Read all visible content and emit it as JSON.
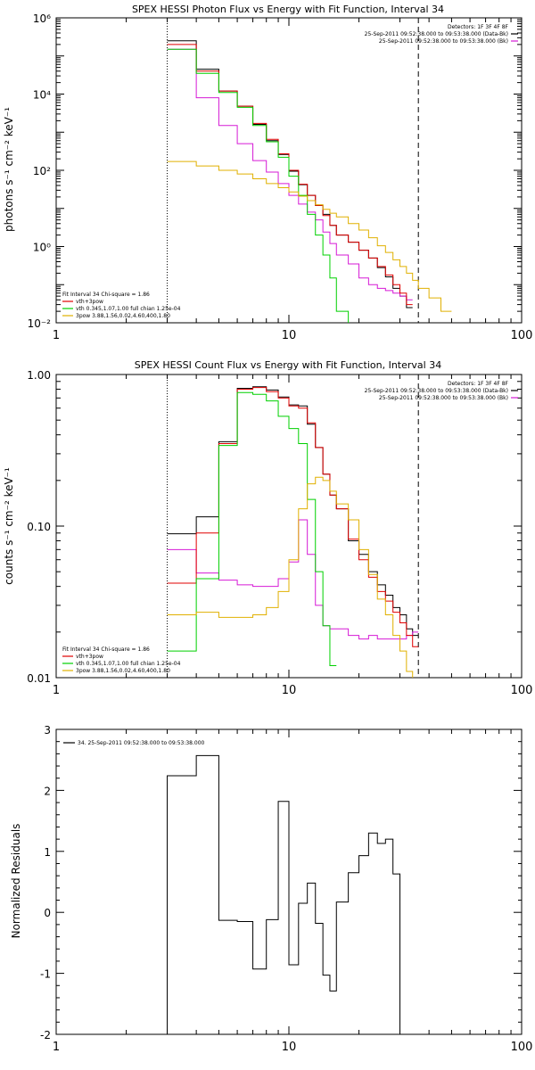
{
  "chart_data": [
    {
      "type": "line",
      "title": "SPEX HESSI Photon Flux vs Energy with Fit Function, Interval 34",
      "xlabel": "",
      "ylabel": "photons s⁻¹ cm⁻² keV⁻¹",
      "xscale": "log",
      "yscale": "log",
      "xlim": [
        1,
        100
      ],
      "ylim": [
        0.01,
        1000000
      ],
      "x_ticks": [
        {
          "v": 1,
          "label": "1"
        },
        {
          "v": 10,
          "label": "10"
        },
        {
          "v": 100,
          "label": "100"
        }
      ],
      "y_ticks": [
        {
          "v": 0.01,
          "label": "10⁻²"
        },
        {
          "v": 1,
          "label": "10⁰"
        },
        {
          "v": 100,
          "label": "10²"
        },
        {
          "v": 10000,
          "label": "10⁴"
        },
        {
          "v": 1000000,
          "label": "10⁶"
        }
      ],
      "vlines": [
        {
          "x": 3.0,
          "style": "dotted"
        },
        {
          "x": 36,
          "style": "dashed"
        }
      ],
      "legend_topright": [
        {
          "text": "Detectors: 1F 3F 4F 8F",
          "color": ""
        },
        {
          "text": "25-Sep-2011 09:52:38.000 to 09:53:38.000 (Data-Bk)",
          "color": "#000000"
        },
        {
          "text": "25-Sep-2011 09:52:38.000 to 09:53:38.000 (Bk)",
          "color": "#d61ad6"
        }
      ],
      "legend_bottomleft": [
        {
          "text": "Fit Interval 34   Chi-square = 1.86",
          "color": ""
        },
        {
          "text": "vth+3pow",
          "color": "#e00000"
        },
        {
          "text": "vth 0.345,1.07,1.00  full chian 1.25e-04",
          "color": "#00d000"
        },
        {
          "text": "3pow 3.88,1.56,0.02,4.60,400,1.80",
          "color": "#e0b000"
        }
      ],
      "edges": [
        3.0,
        4.0,
        5.0,
        6.0,
        7.0,
        8.0,
        9.0,
        10.0,
        11.0,
        12.0,
        13.0,
        14.0,
        15.0,
        16.0,
        18.0,
        20.0,
        22.0,
        24.0,
        26.0,
        28.0,
        30.0,
        32.0,
        34.0,
        36.0,
        40.0,
        45.0,
        50.0
      ],
      "series": [
        {
          "name": "Data-Bk",
          "color": "#000000",
          "values": [
            250000,
            45000,
            12000,
            4800,
            1600,
            600,
            260,
            95,
            42,
            22,
            12,
            7.0,
            3.6,
            2.0,
            1.3,
            0.8,
            0.5,
            0.28,
            0.16,
            0.08,
            0.05,
            0.025
          ]
        },
        {
          "name": "Bk",
          "color": "#d61ad6",
          "values": [
            150000,
            8000,
            1500,
            500,
            180,
            90,
            45,
            22,
            13,
            8,
            5.0,
            2.4,
            1.2,
            0.6,
            0.35,
            0.15,
            0.1,
            0.08,
            0.07,
            0.06,
            0.05,
            0.04
          ]
        },
        {
          "name": "vth+3pow",
          "color": "#e00000",
          "values": [
            200000,
            40000,
            12000,
            4800,
            1700,
            650,
            270,
            100,
            43,
            22,
            12,
            6.5,
            3.6,
            2.0,
            1.3,
            0.8,
            0.5,
            0.3,
            0.18,
            0.1,
            0.06,
            0.03
          ]
        },
        {
          "name": "vth",
          "color": "#00d000",
          "values": [
            150000,
            35000,
            11000,
            4500,
            1500,
            560,
            220,
            70,
            22,
            7.0,
            2.0,
            0.6,
            0.15,
            0.02,
            0.004
          ]
        },
        {
          "name": "3pow",
          "color": "#e0b000",
          "values": [
            170,
            130,
            100,
            80,
            60,
            45,
            35,
            27,
            21,
            16,
            12.5,
            9.5,
            7.5,
            6.0,
            4.0,
            2.7,
            1.7,
            1.05,
            0.7,
            0.45,
            0.3,
            0.2,
            0.13,
            0.08,
            0.045,
            0.02
          ]
        }
      ]
    },
    {
      "type": "line",
      "title": "SPEX HESSI Count Flux vs Energy with Fit Function, Interval 34",
      "xlabel": "",
      "ylabel": "counts s⁻¹ cm⁻² keV⁻¹",
      "xscale": "log",
      "yscale": "log",
      "xlim": [
        1,
        100
      ],
      "ylim": [
        0.01,
        1.0
      ],
      "x_ticks": [
        {
          "v": 1,
          "label": "1"
        },
        {
          "v": 10,
          "label": "10"
        },
        {
          "v": 100,
          "label": "100"
        }
      ],
      "y_ticks": [
        {
          "v": 0.01,
          "label": "0.01"
        },
        {
          "v": 0.1,
          "label": "0.10"
        },
        {
          "v": 1.0,
          "label": "1.00"
        }
      ],
      "vlines": [
        {
          "x": 3.0,
          "style": "dotted"
        },
        {
          "x": 36,
          "style": "dashed"
        }
      ],
      "legend_topright": [
        {
          "text": "Detectors: 1F 3F 4F 8F",
          "color": ""
        },
        {
          "text": "25-Sep-2011 09:52:38.000 to 09:53:38.000 (Data-Bk)",
          "color": "#000000"
        },
        {
          "text": "25-Sep-2011 09:52:38.000 to 09:53:38.000 (Bk)",
          "color": "#d61ad6"
        }
      ],
      "legend_bottomleft": [
        {
          "text": "Fit Interval 34   Chi-square = 1.86",
          "color": ""
        },
        {
          "text": "vth+3pow",
          "color": "#e00000"
        },
        {
          "text": "vth 0.345,1.07,1.00  full chian 1.25e-04",
          "color": "#00d000"
        },
        {
          "text": "3pow 3.88,1.56,0.02,4.60,400,1.80",
          "color": "#e0b000"
        }
      ],
      "edges": [
        3.0,
        4.0,
        5.0,
        6.0,
        7.0,
        8.0,
        9.0,
        10.0,
        11.0,
        12.0,
        13.0,
        14.0,
        15.0,
        16.0,
        18.0,
        20.0,
        22.0,
        24.0,
        26.0,
        28.0,
        30.0,
        32.0,
        34.0,
        36.0,
        40.0
      ],
      "series": [
        {
          "name": "Data-Bk",
          "color": "#000000",
          "values": [
            0.089,
            0.115,
            0.36,
            0.81,
            0.83,
            0.79,
            0.71,
            0.63,
            0.62,
            0.47,
            0.33,
            0.22,
            0.16,
            0.13,
            0.08,
            0.065,
            0.05,
            0.041,
            0.035,
            0.029,
            0.026,
            0.021,
            0.019
          ]
        },
        {
          "name": "Bk",
          "color": "#d61ad6",
          "values": [
            0.07,
            0.049,
            0.044,
            0.041,
            0.04,
            0.04,
            0.045,
            0.058,
            0.11,
            0.065,
            0.03,
            0.022,
            0.021,
            0.021,
            0.019,
            0.018,
            0.019,
            0.018,
            0.018,
            0.018,
            0.018,
            0.019,
            0.02
          ]
        },
        {
          "name": "vth+3pow",
          "color": "#e00000",
          "values": [
            0.042,
            0.09,
            0.35,
            0.8,
            0.82,
            0.77,
            0.7,
            0.62,
            0.6,
            0.48,
            0.33,
            0.22,
            0.16,
            0.13,
            0.082,
            0.06,
            0.046,
            0.037,
            0.032,
            0.027,
            0.023,
            0.019,
            0.016
          ]
        },
        {
          "name": "vth",
          "color": "#00d000",
          "values": [
            0.015,
            0.045,
            0.34,
            0.76,
            0.74,
            0.67,
            0.53,
            0.44,
            0.35,
            0.15,
            0.05,
            0.022,
            0.012
          ]
        },
        {
          "name": "3pow",
          "color": "#e0b000",
          "values": [
            0.026,
            0.027,
            0.025,
            0.025,
            0.026,
            0.029,
            0.037,
            0.06,
            0.13,
            0.19,
            0.21,
            0.2,
            0.17,
            0.14,
            0.11,
            0.07,
            0.048,
            0.033,
            0.026,
            0.019,
            0.015,
            0.011,
            0.008
          ]
        }
      ]
    },
    {
      "type": "line",
      "title": "",
      "xlabel": "",
      "ylabel": "Normalized Residuals",
      "xscale": "log",
      "yscale": "linear",
      "xlim": [
        1,
        100
      ],
      "ylim": [
        -2,
        3
      ],
      "x_ticks": [
        {
          "v": 1,
          "label": "1"
        },
        {
          "v": 10,
          "label": "10"
        },
        {
          "v": 100,
          "label": "100"
        }
      ],
      "y_ticks": [
        {
          "v": -2,
          "label": "-2"
        },
        {
          "v": -1,
          "label": "-1"
        },
        {
          "v": 0,
          "label": "0"
        },
        {
          "v": 1,
          "label": "1"
        },
        {
          "v": 2,
          "label": "2"
        },
        {
          "v": 3,
          "label": "3"
        }
      ],
      "vlines": [],
      "legend_topright": [],
      "legend_bottomleft": [],
      "legend_topleft": [
        {
          "text": "34. 25-Sep-2011 09:52:38.000 to 09:53:38.000",
          "color": "#000000"
        }
      ],
      "edges": [
        3.0,
        4.0,
        5.0,
        6.0,
        7.0,
        8.0,
        9.0,
        10.0,
        11.0,
        12.0,
        13.0,
        14.0,
        15.0,
        16.0,
        18.0,
        20.0,
        22.0,
        24.0,
        26.0,
        28.0,
        30.0,
        32.0,
        34.0,
        36.0
      ],
      "series": [
        {
          "name": "",
          "color": "#000000",
          "values": [
            2.24,
            2.57,
            -0.13,
            -0.15,
            -0.93,
            -0.12,
            1.82,
            -0.86,
            0.15,
            0.48,
            -0.18,
            -1.03,
            -1.29,
            0.17,
            0.65,
            0.93,
            1.3,
            1.13,
            1.2,
            0.63
          ],
          "drop_to_bottom": true
        }
      ]
    }
  ]
}
